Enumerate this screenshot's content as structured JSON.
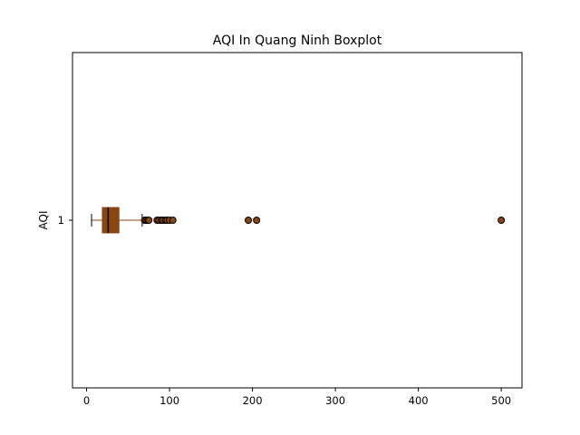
{
  "chart_data": {
    "type": "boxplot",
    "orientation": "horizontal",
    "title": "AQI In Quang Ninh Boxplot",
    "xlabel": "",
    "ylabel": "AQI",
    "xlim": [
      -17,
      525
    ],
    "x_ticks": [
      0,
      100,
      200,
      300,
      400,
      500
    ],
    "y_tick_labels": [
      "1"
    ],
    "grid": false,
    "colors": {
      "box_fill": "#8B4513",
      "whisker": "#8B4513",
      "median": "#000000",
      "flier_fill": "#8B4513"
    },
    "series": [
      {
        "whisker_low": 6,
        "q1": 19,
        "median": 26,
        "q3": 39,
        "whisker_high": 67,
        "outliers": [
          70,
          72,
          74,
          75,
          85,
          87,
          90,
          92,
          95,
          97,
          100,
          104,
          195,
          205,
          500
        ]
      }
    ]
  }
}
